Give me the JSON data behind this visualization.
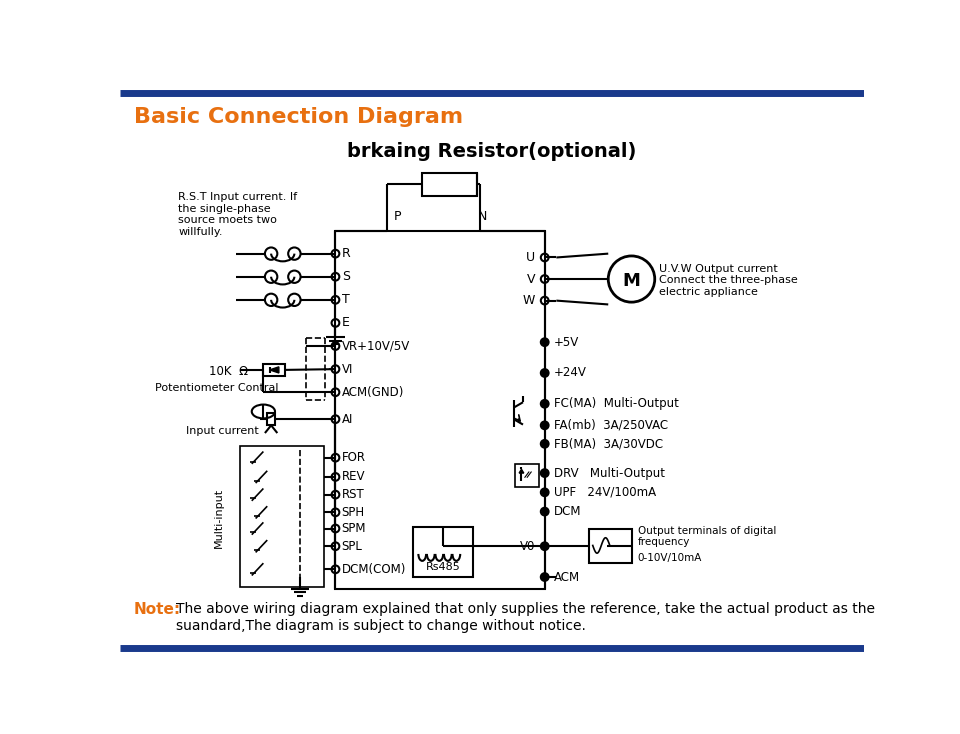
{
  "title": "Basic Connection Diagram",
  "subtitle": "brkaing Resistor(optional)",
  "title_color": "#E87010",
  "subtitle_color": "#000000",
  "bg_color": "#FFFFFF",
  "border_color": "#1A3A8C",
  "note_color": "#E87010",
  "note_body_color": "#000000",
  "rst_text": "R.S.T Input current. If\nthe single-phase\nsource moets two\nwillfully.",
  "uvw_text": "U.V.W Output current\nConnect the three-phase\nelectric appliance",
  "note_label": "Note:",
  "note_body": "The above wiring diagram explained that only supplies the reference, take the actual product as the\nsuandard,The diagram is subject to change without notice."
}
